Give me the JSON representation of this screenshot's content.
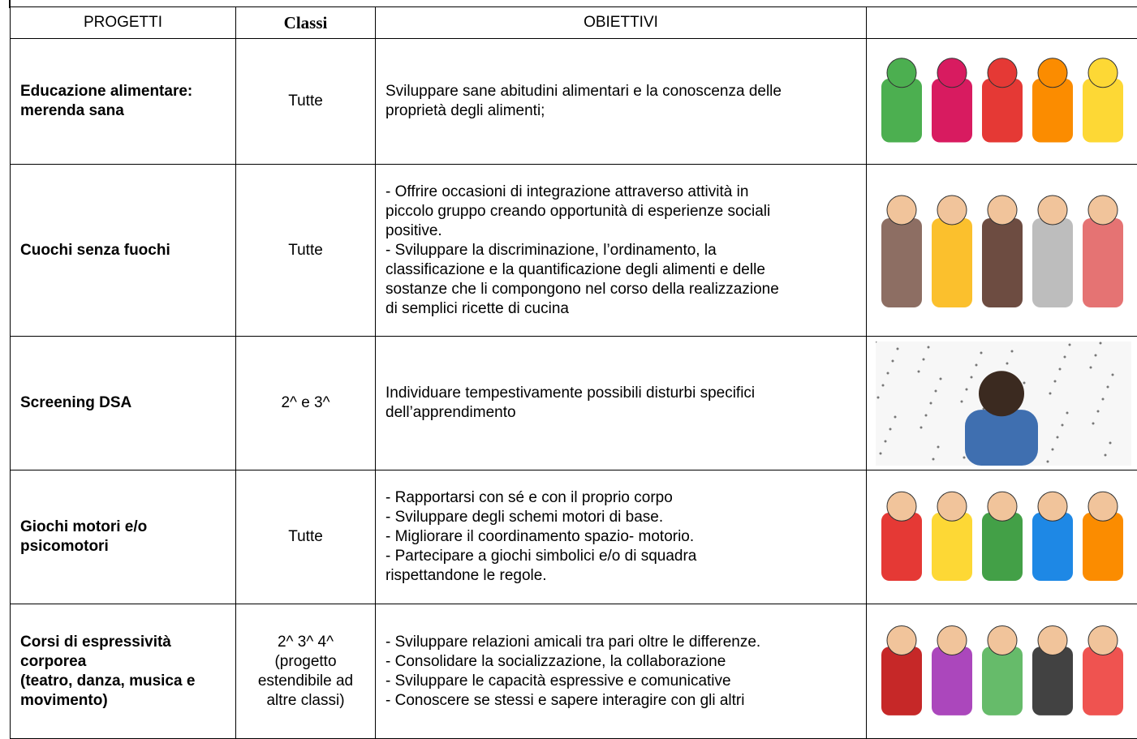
{
  "table": {
    "header": [
      "PROGETTI",
      "Classi",
      "OBIETTIVI"
    ],
    "rows": [
      {
        "project": [
          "Educazione alimentare:",
          "merenda sana"
        ],
        "classes": [
          "Tutte"
        ],
        "objectives": [
          "Sviluppare sane abitudini alimentari e la conoscenza delle",
          "proprietà degli alimenti;"
        ]
      },
      {
        "project": [
          "Cuochi senza fuochi"
        ],
        "classes": [
          "Tutte"
        ],
        "objectives": [
          "- Offrire occasioni di integrazione attraverso attività in",
          "piccolo gruppo creando opportunità di esperienze sociali",
          "positive.",
          "- Sviluppare la discriminazione, l’ordinamento, la",
          "classificazione e la quantificazione degli alimenti e delle",
          "sostanze che li compongono nel corso della realizzazione",
          "di semplici ricette di cucina"
        ]
      },
      {
        "project": [
          "Screening DSA"
        ],
        "classes": [
          "2^ e 3^"
        ],
        "objectives": [
          "Individuare tempestivamente possibili disturbi specifici",
          "dell’apprendimento"
        ]
      },
      {
        "project": [
          "Giochi motori e/o",
          "psicomotori"
        ],
        "classes": [
          "Tutte"
        ],
        "objectives": [
          "- Rapportarsi con sé e con il proprio corpo",
          "- Sviluppare degli schemi motori di base.",
          "- Migliorare il coordinamento spazio- motorio.",
          "- Partecipare a giochi simbolici e/o di squadra",
          "rispettandone le regole."
        ]
      },
      {
        "project": [
          "Corsi di espressività",
          "corporea",
          "(teatro, danza, musica e",
          "movimento)"
        ],
        "classes": [
          "2^ 3^ 4^",
          "(progetto",
          "estendibile ad",
          "altre classi)"
        ],
        "objectives": [
          "- Sviluppare relazioni amicali tra pari oltre le differenze.",
          "- Consolidare la socializzazione, la collaborazione",
          "- Sviluppare le capacità espressive e comunicative",
          "- Conoscere se stessi e sapere interagire con gli altri"
        ]
      }
    ]
  }
}
